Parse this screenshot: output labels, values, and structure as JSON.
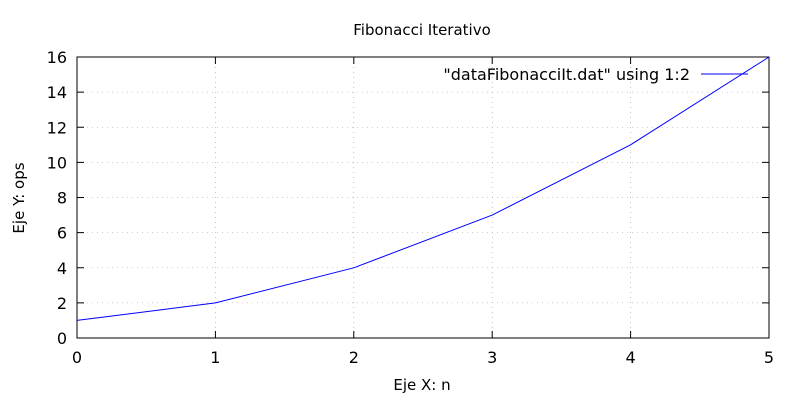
{
  "chart_data": {
    "type": "line",
    "title": "Fibonacci Iterativo",
    "xlabel": "Eje X: n",
    "ylabel": "Eje Y: ops",
    "xlim": [
      0,
      5
    ],
    "ylim": [
      0,
      16
    ],
    "xticks": [
      0,
      1,
      2,
      3,
      4,
      5
    ],
    "yticks": [
      0,
      2,
      4,
      6,
      8,
      10,
      12,
      14,
      16
    ],
    "grid": true,
    "legend_position": "top-right",
    "series": [
      {
        "name": "\"dataFibonacciIt.dat\" using 1:2",
        "color": "#0000ff",
        "x": [
          0,
          1,
          2,
          3,
          4,
          5
        ],
        "y": [
          1,
          2,
          4,
          7,
          11,
          16
        ]
      }
    ]
  }
}
